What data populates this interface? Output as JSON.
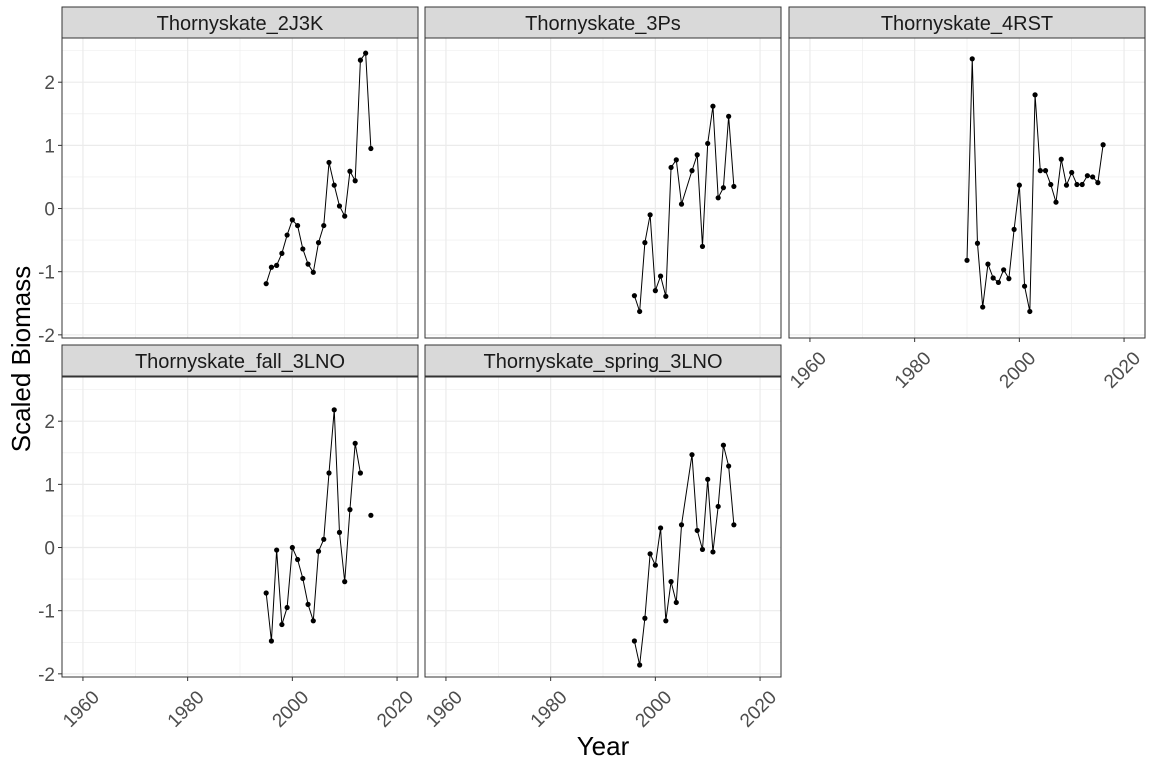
{
  "chart_data": {
    "type": "line",
    "xlabel": "Year",
    "ylabel": "Scaled Biomass",
    "xlim": [
      1956,
      2024
    ],
    "ylim": [
      -2.05,
      2.7
    ],
    "x_ticks": [
      1960,
      1980,
      2000,
      2020
    ],
    "y_ticks": [
      -2,
      -1,
      0,
      1,
      2
    ],
    "x_tick_labels": [
      "1960",
      "1980",
      "2000",
      "2020"
    ],
    "y_tick_labels": [
      "-2",
      "-1",
      "0",
      "1",
      "2"
    ],
    "grid": true,
    "panel_colors": {
      "strip_fill": "#d9d9d9",
      "grid": "#ebebeb",
      "line": "#000000",
      "point": "#000000"
    },
    "panels": [
      {
        "name": "Thornyskate_2J3K",
        "x": [
          1995,
          1996,
          1997,
          1998,
          1999,
          2000,
          2001,
          2002,
          2003,
          2004,
          2005,
          2006,
          2007,
          2008,
          2009,
          2010,
          2011,
          2012,
          2013,
          2014,
          2015
        ],
        "y": [
          -1.19,
          -0.93,
          -0.9,
          -0.71,
          -0.42,
          -0.18,
          -0.27,
          -0.64,
          -0.88,
          -1.01,
          -0.54,
          -0.27,
          0.73,
          0.37,
          0.04,
          -0.12,
          0.59,
          0.44,
          2.35,
          2.46,
          0.95
        ]
      },
      {
        "name": "Thornyskate_3Ps",
        "x": [
          1996,
          1997,
          1998,
          1999,
          2000,
          2001,
          2002,
          2003,
          2004,
          2005,
          2007,
          2008,
          2009,
          2010,
          2011,
          2012,
          2013,
          2014,
          2015
        ],
        "y": [
          -1.38,
          -1.63,
          -0.54,
          -0.1,
          -1.3,
          -1.07,
          -1.39,
          0.65,
          0.77,
          0.07,
          0.6,
          0.85,
          -0.6,
          1.03,
          1.62,
          0.17,
          0.33,
          1.46,
          0.35
        ]
      },
      {
        "name": "Thornyskate_4RST",
        "x": [
          1990,
          1991,
          1992,
          1993,
          1994,
          1995,
          1996,
          1997,
          1998,
          1999,
          2000,
          2001,
          2002,
          2003,
          2004,
          2005,
          2006,
          2007,
          2008,
          2009,
          2010,
          2011,
          2012,
          2013,
          2014,
          2015,
          2016
        ],
        "y": [
          -0.82,
          2.37,
          -0.55,
          -1.56,
          -0.88,
          -1.1,
          -1.17,
          -0.97,
          -1.11,
          -0.33,
          0.37,
          -1.23,
          -1.63,
          1.8,
          0.6,
          0.6,
          0.38,
          0.1,
          0.78,
          0.37,
          0.57,
          0.38,
          0.38,
          0.52,
          0.5,
          0.41,
          1.01
        ]
      },
      {
        "name": "Thornyskate_fall_3LNO",
        "x": [
          1995,
          1996,
          1997,
          1998,
          1999,
          2000,
          2001,
          2002,
          2003,
          2004,
          2005,
          2006,
          2007,
          2008,
          2009,
          2010,
          2011,
          2012,
          2013,
          2015
        ],
        "y": [
          -0.72,
          -1.48,
          -0.04,
          -1.22,
          -0.95,
          0.0,
          -0.19,
          -0.49,
          -0.9,
          -1.16,
          -0.06,
          0.13,
          1.18,
          2.18,
          0.24,
          -0.54,
          0.6,
          1.65,
          1.18,
          0.51
        ],
        "segments": [
          [
            0,
            18
          ],
          [
            19,
            19
          ]
        ]
      },
      {
        "name": "Thornyskate_spring_3LNO",
        "x": [
          1996,
          1997,
          1998,
          1999,
          2000,
          2001,
          2002,
          2003,
          2004,
          2005,
          2007,
          2008,
          2009,
          2010,
          2011,
          2012,
          2013,
          2014,
          2015
        ],
        "y": [
          -1.48,
          -1.86,
          -1.12,
          -0.1,
          -0.28,
          0.31,
          -1.16,
          -0.54,
          -0.87,
          0.36,
          1.47,
          0.27,
          -0.03,
          1.08,
          -0.07,
          0.65,
          1.62,
          1.29,
          0.36
        ]
      }
    ]
  }
}
